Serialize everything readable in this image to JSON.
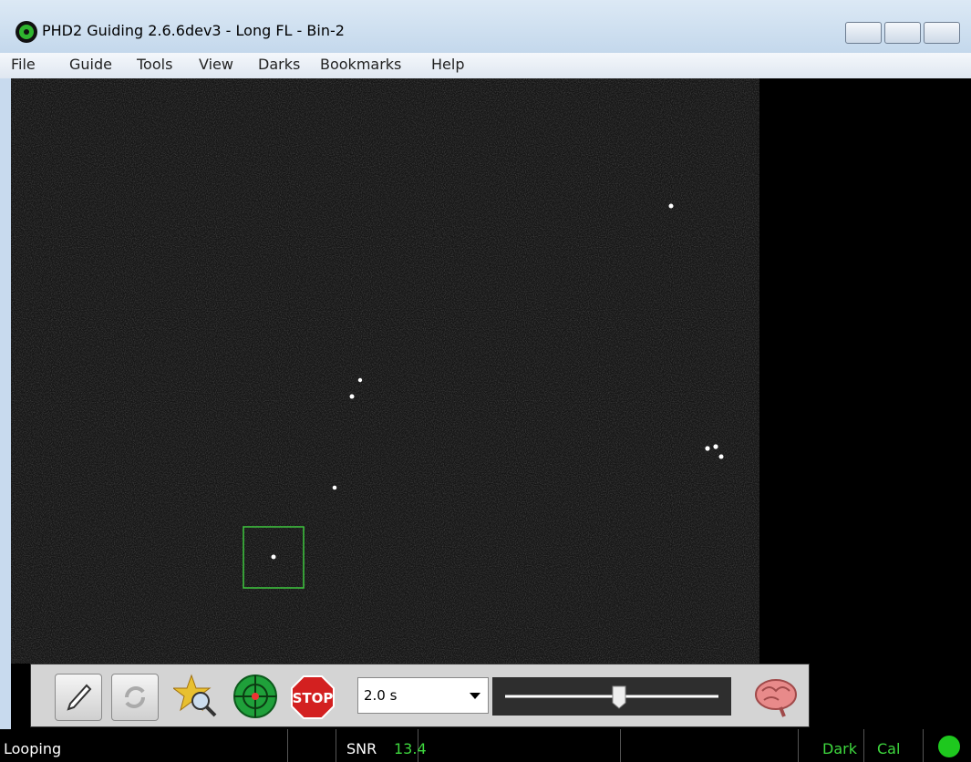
{
  "window": {
    "title": "PHD2 Guiding 2.6.6dev3 - Long FL - Bin-2"
  },
  "menu": [
    "File",
    "Guide",
    "Tools",
    "View",
    "Darks",
    "Bookmarks",
    "Help"
  ],
  "toolbar": {
    "stop": "STOP",
    "exposure": "2.0 s"
  },
  "status": {
    "state": "Looping",
    "snr_label": "SNR",
    "snr": 13.4,
    "dark": "Dark",
    "cal": "Cal"
  }
}
